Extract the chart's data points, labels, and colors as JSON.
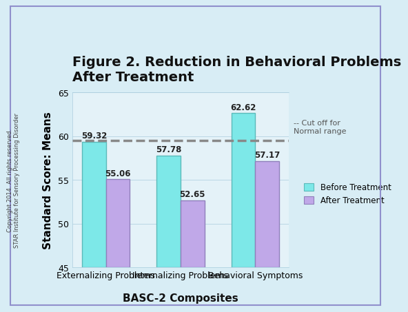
{
  "title": "Figure 2. Reduction in Behavioral Problems\nAfter Treatment",
  "xlabel": "BASC-2 Composites",
  "ylabel": "Standard Score: Means",
  "categories": [
    "Externalizing Problems",
    "Internalizing Problems",
    "Behavioral Symptoms"
  ],
  "before_values": [
    59.32,
    57.78,
    62.62
  ],
  "after_values": [
    55.06,
    52.65,
    57.17
  ],
  "before_color": "#7DE8E8",
  "after_color": "#C0A8E8",
  "before_edge": "#5BBABA",
  "after_edge": "#9080BB",
  "cutoff_value": 59.5,
  "cutoff_label": "-- Cut off for\nNormal range",
  "ylim": [
    45,
    65
  ],
  "yticks": [
    45,
    50,
    55,
    60,
    65
  ],
  "background_color": "#D8EDF5",
  "plot_bg_color": "#E4F2F8",
  "copyright_text": "Copyright 2014. All rights reserved.\nSTAR Institute for Sensory Processing Disorder",
  "legend_before": "Before Treatment",
  "legend_after": "After Treatment",
  "bar_width": 0.32,
  "title_fontsize": 14,
  "axis_label_fontsize": 11,
  "tick_fontsize": 9,
  "value_fontsize": 8.5,
  "bar_bottom": 45
}
